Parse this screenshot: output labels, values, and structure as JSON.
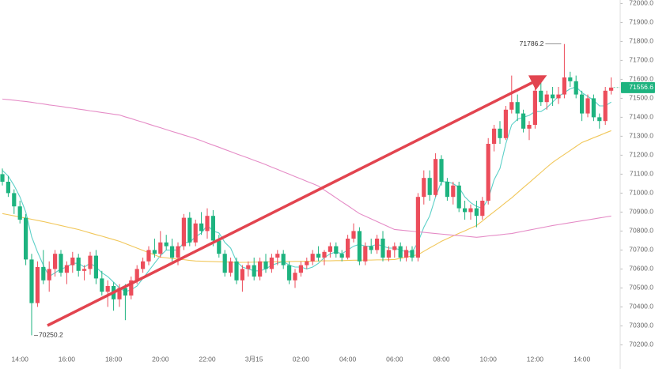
{
  "chart_data": {
    "type": "candlestick",
    "categories": [
      null,
      null,
      null,
      "14:00",
      null,
      null,
      null,
      null,
      null,
      null,
      null,
      "16:00",
      null,
      null,
      null,
      null,
      null,
      null,
      null,
      "18:00",
      null,
      null,
      null,
      null,
      null,
      null,
      null,
      "20:00",
      null,
      null,
      null,
      null,
      null,
      null,
      null,
      "22:00",
      null,
      null,
      null,
      null,
      null,
      null,
      null,
      "3月15",
      null,
      null,
      null,
      null,
      null,
      null,
      null,
      "02:00",
      null,
      null,
      null,
      null,
      null,
      null,
      null,
      "04:00",
      null,
      null,
      null,
      null,
      null,
      null,
      null,
      "06:00",
      null,
      null,
      null,
      null,
      null,
      null,
      null,
      "08:00",
      null,
      null,
      null,
      null,
      null,
      null,
      null,
      "10:00",
      null,
      null,
      null,
      null,
      null,
      null,
      null,
      "12:00",
      null,
      null,
      null,
      null,
      null,
      null,
      null,
      "14:00",
      null,
      null,
      null,
      null,
      null
    ],
    "candles": [
      [
        71100,
        71130,
        71040,
        71060
      ],
      [
        71060,
        71090,
        70980,
        71000
      ],
      [
        71000,
        71020,
        70890,
        70930
      ],
      [
        70930,
        70960,
        70840,
        70860
      ],
      [
        70870,
        70890,
        70620,
        70650
      ],
      [
        70650,
        70680,
        70250.2,
        70420
      ],
      [
        70420,
        70640,
        70400,
        70610
      ],
      [
        70610,
        70700,
        70520,
        70540
      ],
      [
        70540,
        70640,
        70480,
        70600
      ],
      [
        70600,
        70700,
        70560,
        70680
      ],
      [
        70680,
        70700,
        70560,
        70580
      ],
      [
        70580,
        70640,
        70520,
        70620
      ],
      [
        70620,
        70690,
        70580,
        70660
      ],
      [
        70660,
        70680,
        70560,
        70590
      ],
      [
        70590,
        70620,
        70540,
        70600
      ],
      [
        70600,
        70690,
        70570,
        70670
      ],
      [
        70670,
        70700,
        70520,
        70550
      ],
      [
        70550,
        70590,
        70460,
        70480
      ],
      [
        70480,
        70540,
        70400,
        70510
      ],
      [
        70510,
        70530,
        70380,
        70440
      ],
      [
        70440,
        70520,
        70400,
        70500
      ],
      [
        70500,
        70520,
        70330,
        70460
      ],
      [
        70460,
        70560,
        70440,
        70540
      ],
      [
        70540,
        70620,
        70520,
        70600
      ],
      [
        70600,
        70660,
        70580,
        70640
      ],
      [
        70640,
        70720,
        70620,
        70700
      ],
      [
        70700,
        70760,
        70660,
        70680
      ],
      [
        70680,
        70800,
        70660,
        70740
      ],
      [
        70740,
        70780,
        70700,
        70720
      ],
      [
        70720,
        70760,
        70640,
        70660
      ],
      [
        70660,
        70740,
        70620,
        70720
      ],
      [
        70720,
        70890,
        70700,
        70870
      ],
      [
        70870,
        70900,
        70720,
        70740
      ],
      [
        70740,
        70860,
        70720,
        70840
      ],
      [
        70840,
        70900,
        70780,
        70800
      ],
      [
        70800,
        70920,
        70760,
        70880
      ],
      [
        70880,
        70910,
        70720,
        70750
      ],
      [
        70750,
        70780,
        70660,
        70680
      ],
      [
        70680,
        70700,
        70560,
        70580
      ],
      [
        70580,
        70660,
        70560,
        70640
      ],
      [
        70640,
        70660,
        70520,
        70540
      ],
      [
        70540,
        70620,
        70480,
        70600
      ],
      [
        70600,
        70640,
        70560,
        70620
      ],
      [
        70620,
        70660,
        70540,
        70560
      ],
      [
        70560,
        70660,
        70540,
        70640
      ],
      [
        70640,
        70680,
        70580,
        70600
      ],
      [
        70600,
        70680,
        70580,
        70660
      ],
      [
        70660,
        70700,
        70620,
        70680
      ],
      [
        70680,
        70700,
        70600,
        70620
      ],
      [
        70620,
        70640,
        70520,
        70540
      ],
      [
        70540,
        70600,
        70500,
        70580
      ],
      [
        70580,
        70640,
        70560,
        70620
      ],
      [
        70620,
        70660,
        70600,
        70640
      ],
      [
        70640,
        70700,
        70620,
        70680
      ],
      [
        70680,
        70720,
        70640,
        70660
      ],
      [
        70660,
        70700,
        70620,
        70690
      ],
      [
        70690,
        70740,
        70660,
        70720
      ],
      [
        70720,
        70740,
        70660,
        70680
      ],
      [
        70680,
        70700,
        70640,
        70660
      ],
      [
        70660,
        70780,
        70650,
        70760
      ],
      [
        70760,
        70840,
        70740,
        70800
      ],
      [
        70800,
        70820,
        70620,
        70640
      ],
      [
        70640,
        70740,
        70620,
        70720
      ],
      [
        70720,
        70760,
        70680,
        70700
      ],
      [
        70700,
        70780,
        70680,
        70760
      ],
      [
        70760,
        70800,
        70640,
        70660
      ],
      [
        70660,
        70720,
        70640,
        70700
      ],
      [
        70700,
        70740,
        70660,
        70720
      ],
      [
        70720,
        70740,
        70640,
        70660
      ],
      [
        70660,
        70720,
        70640,
        70700
      ],
      [
        70700,
        70720,
        70640,
        70660
      ],
      [
        70660,
        71000,
        70640,
        70980
      ],
      [
        70980,
        71120,
        70940,
        71080
      ],
      [
        71080,
        71120,
        70960,
        70990
      ],
      [
        70990,
        71210,
        70980,
        71180
      ],
      [
        71180,
        71200,
        71040,
        71060
      ],
      [
        71060,
        71080,
        70960,
        70980
      ],
      [
        70980,
        71060,
        70940,
        71040
      ],
      [
        71040,
        71060,
        70900,
        70920
      ],
      [
        70920,
        70960,
        70860,
        70900
      ],
      [
        70900,
        70940,
        70860,
        70920
      ],
      [
        70920,
        70960,
        70820,
        70880
      ],
      [
        70880,
        70980,
        70860,
        70960
      ],
      [
        70960,
        71290,
        70940,
        71260
      ],
      [
        71260,
        71360,
        71220,
        71340
      ],
      [
        71340,
        71380,
        71260,
        71290
      ],
      [
        71290,
        71460,
        71280,
        71440
      ],
      [
        71440,
        71620,
        71420,
        71480
      ],
      [
        71480,
        71520,
        71380,
        71420
      ],
      [
        71420,
        71440,
        71320,
        71340
      ],
      [
        71340,
        71380,
        71280,
        71360
      ],
      [
        71360,
        71560,
        71340,
        71540
      ],
      [
        71540,
        71600,
        71460,
        71480
      ],
      [
        71480,
        71540,
        71440,
        71520
      ],
      [
        71520,
        71560,
        71460,
        71500
      ],
      [
        71500,
        71560,
        71470,
        71520
      ],
      [
        71520,
        71786.2,
        71500,
        71610
      ],
      [
        71610,
        71640,
        71560,
        71590
      ],
      [
        71590,
        71620,
        71500,
        71520
      ],
      [
        71520,
        71540,
        71380,
        71420
      ],
      [
        71420,
        71520,
        71400,
        71500
      ],
      [
        71500,
        71520,
        71380,
        71400
      ],
      [
        71400,
        71420,
        71340,
        71380
      ],
      [
        71380,
        71560,
        71360,
        71540
      ],
      [
        71540,
        71610,
        71520,
        71556.6
      ]
    ],
    "up_color": "#ec4d5b",
    "down_color": "#1db37f",
    "series": [
      {
        "color": "#5cd0c8",
        "values": [
          71120,
          71090,
          71040,
          70980,
          70900,
          70770,
          70690,
          70620,
          70560,
          70580,
          70600,
          70610,
          70630,
          70630,
          70610,
          70630,
          70610,
          70580,
          70560,
          70530,
          70500,
          70480,
          70490,
          70510,
          70550,
          70590,
          70630,
          70670,
          70700,
          70700,
          70700,
          70740,
          70740,
          70770,
          70790,
          70830,
          70800,
          70790,
          70740,
          70710,
          70640,
          70610,
          70600,
          70590,
          70590,
          70600,
          70620,
          70630,
          70640,
          70620,
          70610,
          70610,
          70600,
          70610,
          70630,
          70660,
          70680,
          70690,
          70680,
          70700,
          70720,
          70730,
          70720,
          70720,
          70730,
          70720,
          70710,
          70710,
          70700,
          70690,
          70690,
          70740,
          70820,
          70880,
          70980,
          71060,
          71060,
          71050,
          71030,
          70980,
          70950,
          70930,
          70920,
          70970,
          71070,
          71130,
          71260,
          71360,
          71390,
          71400,
          71410,
          71430,
          71430,
          71450,
          71480,
          71510,
          71530,
          71550,
          71560,
          71530,
          71510,
          71490,
          71460,
          71460,
          71480
        ]
      },
      {
        "color": "#f1c75a",
        "values": [
          70892,
          70886,
          70880,
          70874,
          70868,
          70862,
          70856,
          70850,
          70843,
          70836,
          70829,
          70822,
          70815,
          70808,
          70799,
          70790,
          70781,
          70773,
          70764,
          70755,
          70746,
          70734,
          70722,
          70710,
          70698,
          70686,
          70674,
          70662,
          70659,
          70655,
          70652,
          70649,
          70645,
          70642,
          70641,
          70640,
          70639,
          70638,
          70637,
          70636,
          70634,
          70635,
          70635,
          70636,
          70636,
          70637,
          70638,
          70638,
          70639,
          70639,
          70640,
          70640,
          70641,
          70641,
          70642,
          70643,
          70643,
          70644,
          70644,
          70645,
          70646,
          70646,
          70647,
          70647,
          70648,
          70648,
          70649,
          70650,
          70656,
          70662,
          70669,
          70675,
          70693,
          70711,
          70728,
          70746,
          70760,
          70774,
          70788,
          70801,
          70815,
          70829,
          70853,
          70878,
          70902,
          70926,
          70951,
          70975,
          71002,
          71029,
          71055,
          71082,
          71109,
          71136,
          71162,
          71183,
          71204,
          71225,
          71246,
          71267,
          71279,
          71292,
          71304,
          71317,
          71329
        ]
      },
      {
        "color": "#e58bc6",
        "values": [
          71496,
          71493,
          71490,
          71486,
          71483,
          71479,
          71474,
          71470,
          71465,
          71461,
          71457,
          71452,
          71448,
          71443,
          71439,
          71434,
          71430,
          71425,
          71421,
          71416,
          71412,
          71402,
          71393,
          71383,
          71374,
          71364,
          71354,
          71345,
          71335,
          71325,
          71316,
          71306,
          71297,
          71287,
          71276,
          71264,
          71253,
          71242,
          71230,
          71219,
          71207,
          71196,
          71185,
          71173,
          71162,
          71150,
          71137,
          71125,
          71112,
          71100,
          71087,
          71075,
          71062,
          71050,
          71037,
          71016,
          70996,
          70975,
          70954,
          70934,
          70913,
          70892,
          70878,
          70864,
          70850,
          70836,
          70822,
          70808,
          70805,
          70802,
          70799,
          70796,
          70793,
          70790,
          70787,
          70784,
          70781,
          70778,
          70776,
          70773,
          70770,
          70767,
          70770,
          70774,
          70777,
          70780,
          70784,
          70787,
          70793,
          70799,
          70805,
          70811,
          70817,
          70823,
          70829,
          70834,
          70839,
          70844,
          70849,
          70854,
          70859,
          70864,
          70869,
          70874,
          70879
        ]
      }
    ],
    "ylim": [
      70150,
      72010
    ],
    "yticks": [
      {
        "value": 70200,
        "label": "70200.0"
      },
      {
        "value": 70300,
        "label": "70300.0"
      },
      {
        "value": 70400,
        "label": "70400.0"
      },
      {
        "value": 70500,
        "label": "70500.0"
      },
      {
        "value": 70600,
        "label": "70600.0"
      },
      {
        "value": 70700,
        "label": "70700.0"
      },
      {
        "value": 70800,
        "label": "70800.0"
      },
      {
        "value": 70900,
        "label": "70900.0"
      },
      {
        "value": 71000,
        "label": "71000.0"
      },
      {
        "value": 71100,
        "label": "71100.0"
      },
      {
        "value": 71200,
        "label": "71200.0"
      },
      {
        "value": 71300,
        "label": "71300.0"
      },
      {
        "value": 71400,
        "label": "71400.0"
      },
      {
        "value": 71500,
        "label": "71500.0"
      },
      {
        "value": 71600,
        "label": "71600.0"
      },
      {
        "value": 71700,
        "label": "71700.0"
      },
      {
        "value": 71800,
        "label": "71800.0"
      },
      {
        "value": 71900,
        "label": "71900.0"
      },
      {
        "value": 72000,
        "label": "72000.0"
      }
    ],
    "grid": false
  }
}
